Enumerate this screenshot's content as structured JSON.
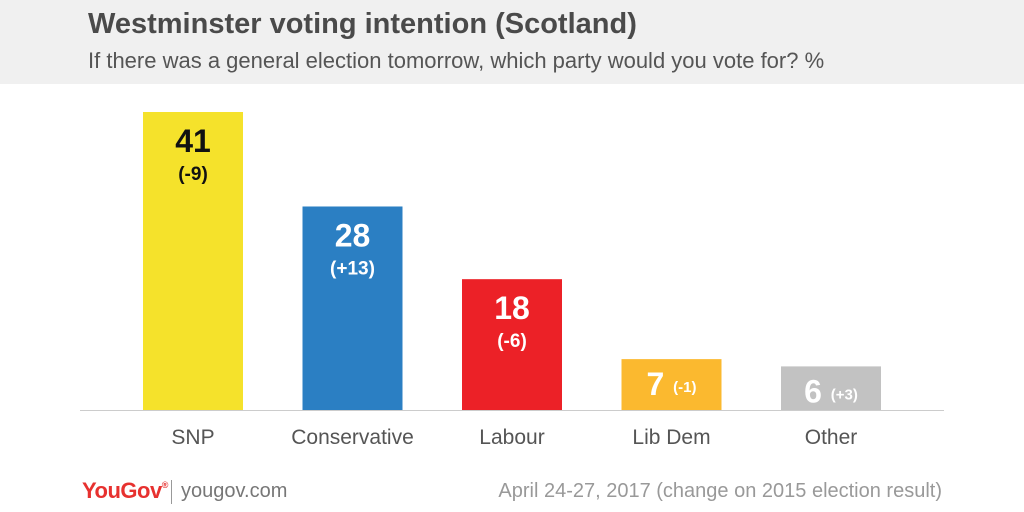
{
  "header": {
    "title": "Westminster voting intention (Scotland)",
    "subtitle": "If there was a general election tomorrow, which party would you vote for? %"
  },
  "chart_data": {
    "type": "bar",
    "categories": [
      "SNP",
      "Conservative",
      "Labour",
      "Lib Dem",
      "Other"
    ],
    "values": [
      41,
      28,
      18,
      7,
      6
    ],
    "changes": [
      "(-9)",
      "(+13)",
      "(-6)",
      "(-1)",
      "(+3)"
    ],
    "colors": [
      "#f5e22b",
      "#2b7fc3",
      "#ec2127",
      "#fbb92f",
      "#c2c2c2"
    ],
    "label_colors": [
      "#111111",
      "#ffffff",
      "#ffffff",
      "#ffffff",
      "#ffffff"
    ],
    "ylim": [
      0,
      41
    ],
    "grid": false,
    "legend": "none"
  },
  "footer": {
    "logo": "YouGov",
    "logo_mark": "®",
    "url": "yougov.com",
    "note": "April 24-27, 2017 (change on 2015 election result)"
  }
}
